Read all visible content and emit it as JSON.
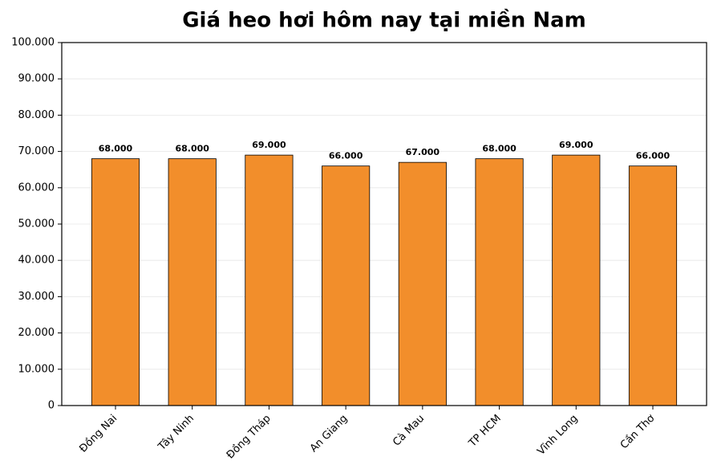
{
  "chart_data": {
    "type": "bar",
    "title": "Giá heo hơi hôm nay tại miền Nam",
    "categories": [
      "Đồng Nai",
      "Tây Ninh",
      "Đồng Tháp",
      "An Giang",
      "Cà Mau",
      "TP HCM",
      "Vĩnh Long",
      "Cần Thơ"
    ],
    "values": [
      68000,
      68000,
      69000,
      66000,
      67000,
      68000,
      69000,
      66000
    ],
    "value_labels": [
      "68.000",
      "68.000",
      "69.000",
      "66.000",
      "67.000",
      "68.000",
      "69.000",
      "66.000"
    ],
    "color": "#f28e2b",
    "ylim": [
      0,
      100000
    ],
    "yticks": [
      0,
      {
        "value": 10000,
        "label": "10.000"
      },
      {
        "value": 20000,
        "label": "20.000"
      },
      {
        "value": 30000,
        "label": "30.000"
      },
      {
        "value": 40000,
        "label": "40.000"
      },
      {
        "value": 50000,
        "label": "50.000"
      },
      {
        "value": 60000,
        "label": "60.000"
      },
      {
        "value": 70000,
        "label": "70.000"
      },
      {
        "value": 80000,
        "label": "80.000"
      },
      {
        "value": 90000,
        "label": "90.000"
      },
      {
        "value": 100000,
        "label": "100.000"
      }
    ],
    "grid": true
  }
}
